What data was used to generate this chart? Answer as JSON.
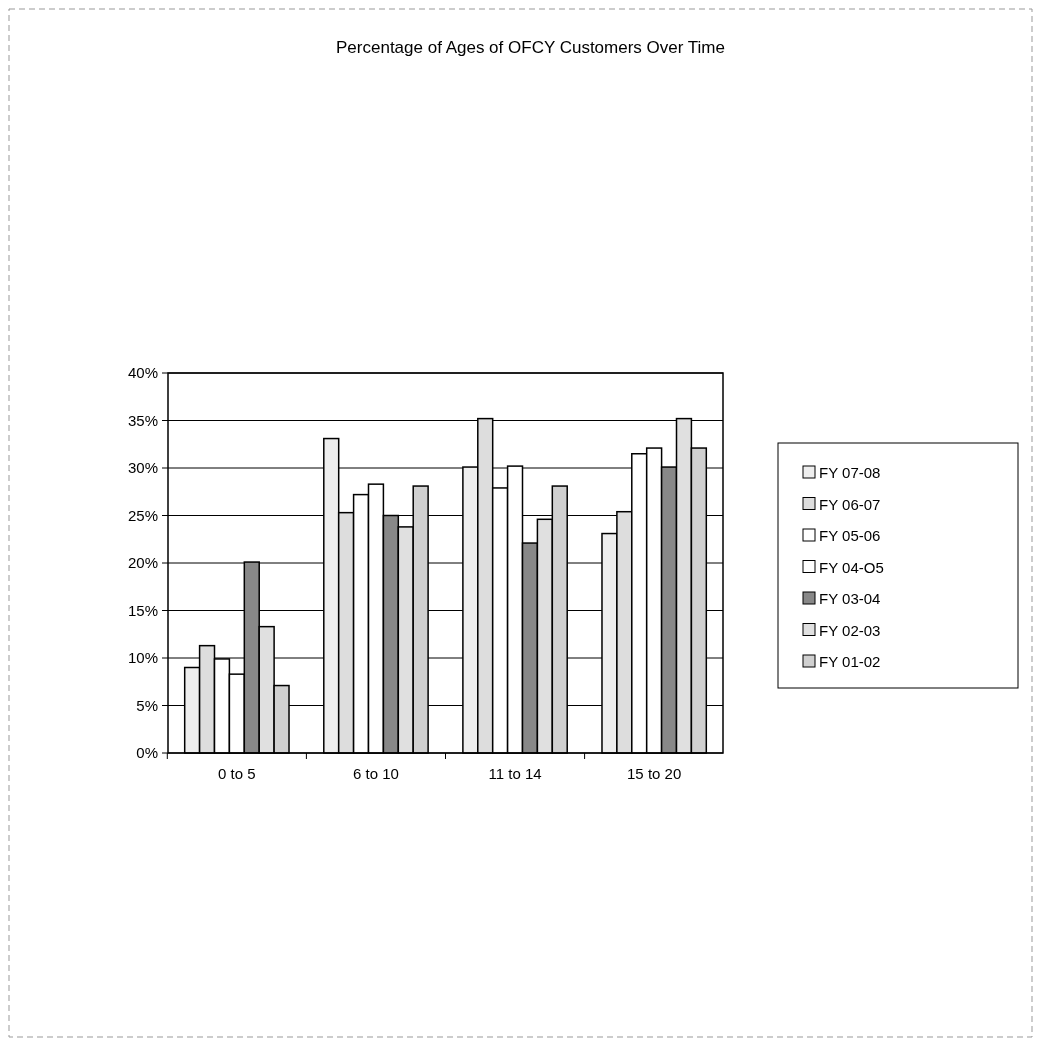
{
  "chart_data": {
    "type": "bar",
    "title": "Percentage of Ages of OFCY Customers Over Time",
    "categories": [
      "0 to 5",
      "6 to 10",
      "11 to 14",
      "15 to 20"
    ],
    "series": [
      {
        "name": "FY 07-08",
        "color": "#eeeeee",
        "values": [
          9.0,
          33.1,
          30.1,
          23.1
        ]
      },
      {
        "name": "FY 06-07",
        "color": "#dddddd",
        "values": [
          11.3,
          25.3,
          35.2,
          25.4
        ]
      },
      {
        "name": "FY 05-06",
        "color": "#ffffff",
        "values": [
          9.9,
          27.2,
          27.9,
          31.5
        ]
      },
      {
        "name": "FY 04-O5",
        "color": "#ffffff",
        "values": [
          8.3,
          28.3,
          30.2,
          32.1
        ]
      },
      {
        "name": "FY 03-04",
        "color": "#888888",
        "values": [
          20.1,
          25.0,
          22.1,
          30.1
        ]
      },
      {
        "name": "FY 02-03",
        "color": "#e0e0e0",
        "values": [
          13.3,
          23.8,
          24.6,
          35.2
        ]
      },
      {
        "name": "FY 01-02",
        "color": "#d0d0d0",
        "values": [
          7.1,
          28.1,
          28.1,
          32.1
        ]
      }
    ],
    "ylim": [
      0,
      40
    ],
    "yticks": [
      {
        "value": 0,
        "label": "0%"
      },
      {
        "value": 5,
        "label": "5%"
      },
      {
        "value": 10,
        "label": "10%"
      },
      {
        "value": 15,
        "label": "15%"
      },
      {
        "value": 20,
        "label": "20%"
      },
      {
        "value": 25,
        "label": "25%"
      },
      {
        "value": 30,
        "label": "30%"
      },
      {
        "value": 35,
        "label": "35%"
      },
      {
        "value": 40,
        "label": "40%"
      }
    ],
    "grid": "y",
    "legend": "right"
  }
}
